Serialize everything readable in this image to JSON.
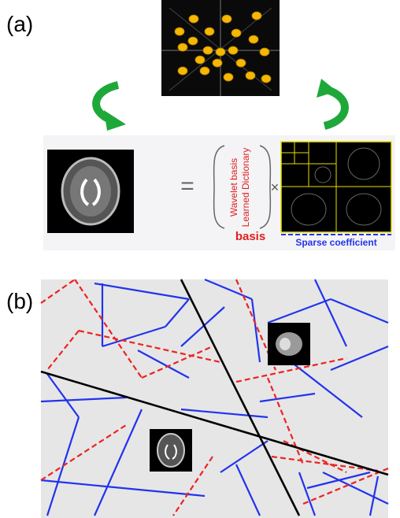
{
  "panel_a": {
    "label": "(a)",
    "equals": "=",
    "basis_items": [
      "Wavelet basis",
      "Learned Dictionary"
    ],
    "basis_label": "basis",
    "times": "×",
    "coefficient_label": "Sparse coefficient"
  },
  "panel_b": {
    "label": "(b)"
  }
}
